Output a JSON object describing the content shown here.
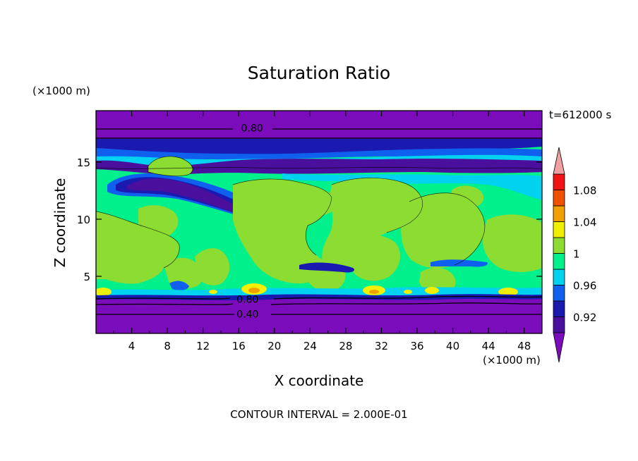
{
  "chart_data": {
    "type": "contour",
    "title": "Saturation Ratio",
    "time_label": "t=612000 s",
    "footer": "CONTOUR INTERVAL = 2.000E-01",
    "xlabel": "X coordinate",
    "ylabel": "Z coordinate",
    "x_unit": "(×1000 m)",
    "y_unit": "(×1000 m)",
    "xlim": [
      0,
      50
    ],
    "ylim": [
      0,
      19.5
    ],
    "x_ticks": [
      4,
      8,
      12,
      16,
      20,
      24,
      28,
      32,
      36,
      40,
      44,
      48
    ],
    "y_ticks": [
      5,
      10,
      15
    ],
    "contour_labels": [
      {
        "text": "0.80",
        "x": 17.5,
        "y": 18.0
      },
      {
        "text": "0.80",
        "x": 17.0,
        "y": 3.0
      },
      {
        "text": "0.40",
        "x": 17.0,
        "y": 1.7
      }
    ],
    "colorbar": {
      "labels": [
        "1.08",
        "1.04",
        "1",
        "0.96",
        "0.92"
      ],
      "levels": [
        0.9,
        0.92,
        0.94,
        0.96,
        0.98,
        1.0,
        1.02,
        1.04,
        1.06,
        1.08,
        1.1
      ],
      "colors": [
        "#4b0f9e",
        "#1a1ab0",
        "#1060f0",
        "#00d2f0",
        "#00f08c",
        "#8cdc32",
        "#f0f000",
        "#f0a000",
        "#f05000",
        "#f01414"
      ],
      "over_color": "#f0a0a0",
      "under_color": "#7a0cbc"
    }
  }
}
